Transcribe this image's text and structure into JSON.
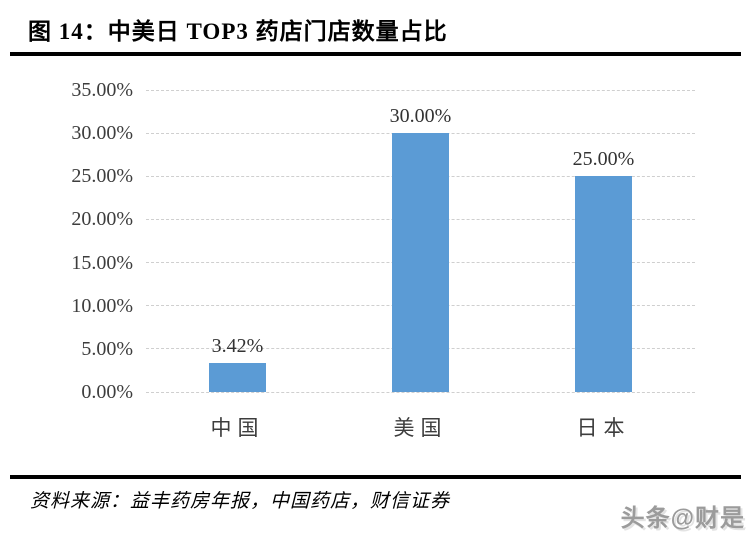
{
  "figure": {
    "title": "图 14：中美日 TOP3 药店门店数量占比",
    "source": "资料来源：益丰药房年报，中国药店，财信证券",
    "watermark": "头条@财是"
  },
  "chart_data": {
    "type": "bar",
    "title": "中美日 TOP3 药店门店数量占比",
    "categories": [
      "中国",
      "美国",
      "日本"
    ],
    "values": [
      3.42,
      30.0,
      25.0
    ],
    "value_labels": [
      "3.42%",
      "30.00%",
      "25.00%"
    ],
    "xlabel": "",
    "ylabel": "",
    "ylim": [
      0,
      35
    ],
    "ytick_step": 5,
    "ytick_labels": [
      "0.00%",
      "5.00%",
      "10.00%",
      "15.00%",
      "20.00%",
      "25.00%",
      "30.00%",
      "35.00%"
    ],
    "grid": "horizontal-dashed",
    "legend_position": "none",
    "bar_color": "#5B9BD5"
  },
  "colors": {
    "bar": "#5B9BD5",
    "gridline": "#cfcfcf",
    "axis_text": "#3d3d3d",
    "rule": "#000000",
    "watermark": "#9b9b9b"
  }
}
